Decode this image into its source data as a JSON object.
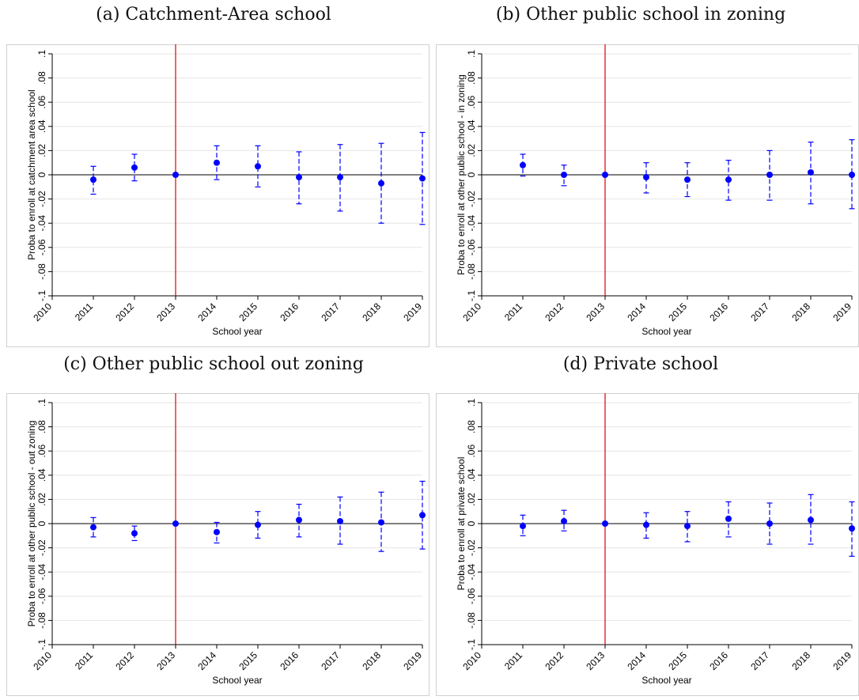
{
  "shared": {
    "xlabel": "School year",
    "x_ticks": [
      "2010",
      "2011",
      "2012",
      "2013",
      "2014",
      "2015",
      "2016",
      "2017",
      "2018",
      "2019"
    ],
    "y_ticks": [
      "-.1",
      "-.08",
      "-.06",
      "-.04",
      "-.02",
      "0",
      ".02",
      ".04",
      ".06",
      ".08",
      ".1"
    ],
    "colors": {
      "point": "#0000ff",
      "ci": "#0000ff",
      "event_line": "#e00000",
      "zero_line": "#000000",
      "grid": "#e6e6e6",
      "frame": "#d0d0d0"
    }
  },
  "chart_data": [
    {
      "type": "scatter",
      "caption": "(a) Catchment-Area school",
      "xlabel": "School year",
      "ylabel": "Proba to enroll at catchment area school",
      "xlim": [
        2010,
        2019
      ],
      "ylim": [
        -0.1,
        0.1
      ],
      "event_year": 2013,
      "points": [
        {
          "x": 2011,
          "y": -0.004,
          "lo": -0.016,
          "hi": 0.007
        },
        {
          "x": 2012,
          "y": 0.006,
          "lo": -0.005,
          "hi": 0.017
        },
        {
          "x": 2013,
          "y": 0.0,
          "lo": 0.0,
          "hi": 0.0
        },
        {
          "x": 2014,
          "y": 0.01,
          "lo": -0.004,
          "hi": 0.024
        },
        {
          "x": 2015,
          "y": 0.007,
          "lo": -0.01,
          "hi": 0.024
        },
        {
          "x": 2016,
          "y": -0.002,
          "lo": -0.024,
          "hi": 0.019
        },
        {
          "x": 2017,
          "y": -0.002,
          "lo": -0.03,
          "hi": 0.025
        },
        {
          "x": 2018,
          "y": -0.007,
          "lo": -0.04,
          "hi": 0.026
        },
        {
          "x": 2019,
          "y": -0.003,
          "lo": -0.041,
          "hi": 0.035
        }
      ]
    },
    {
      "type": "scatter",
      "caption": "(b) Other public school in zoning",
      "xlabel": "School year",
      "ylabel": "Proba to enroll at other public school - in zoning",
      "xlim": [
        2010,
        2019
      ],
      "ylim": [
        -0.1,
        0.1
      ],
      "event_year": 2013,
      "points": [
        {
          "x": 2011,
          "y": 0.008,
          "lo": -0.001,
          "hi": 0.017
        },
        {
          "x": 2012,
          "y": 0.0,
          "lo": -0.009,
          "hi": 0.008
        },
        {
          "x": 2013,
          "y": 0.0,
          "lo": 0.0,
          "hi": 0.0
        },
        {
          "x": 2014,
          "y": -0.002,
          "lo": -0.015,
          "hi": 0.01
        },
        {
          "x": 2015,
          "y": -0.004,
          "lo": -0.018,
          "hi": 0.01
        },
        {
          "x": 2016,
          "y": -0.004,
          "lo": -0.021,
          "hi": 0.012
        },
        {
          "x": 2017,
          "y": 0.0,
          "lo": -0.021,
          "hi": 0.02
        },
        {
          "x": 2018,
          "y": 0.002,
          "lo": -0.024,
          "hi": 0.027
        },
        {
          "x": 2019,
          "y": 0.0,
          "lo": -0.028,
          "hi": 0.029
        }
      ]
    },
    {
      "type": "scatter",
      "caption": "(c) Other public school out zoning",
      "xlabel": "School year",
      "ylabel": "Proba to enroll at other public school - out zoning",
      "xlim": [
        2010,
        2019
      ],
      "ylim": [
        -0.1,
        0.1
      ],
      "event_year": 2013,
      "points": [
        {
          "x": 2011,
          "y": -0.003,
          "lo": -0.011,
          "hi": 0.005
        },
        {
          "x": 2012,
          "y": -0.008,
          "lo": -0.014,
          "hi": -0.002
        },
        {
          "x": 2013,
          "y": 0.0,
          "lo": 0.0,
          "hi": 0.0
        },
        {
          "x": 2014,
          "y": -0.007,
          "lo": -0.016,
          "hi": 0.001
        },
        {
          "x": 2015,
          "y": -0.001,
          "lo": -0.012,
          "hi": 0.01
        },
        {
          "x": 2016,
          "y": 0.003,
          "lo": -0.011,
          "hi": 0.016
        },
        {
          "x": 2017,
          "y": 0.002,
          "lo": -0.017,
          "hi": 0.022
        },
        {
          "x": 2018,
          "y": 0.001,
          "lo": -0.023,
          "hi": 0.026
        },
        {
          "x": 2019,
          "y": 0.007,
          "lo": -0.021,
          "hi": 0.035
        }
      ]
    },
    {
      "type": "scatter",
      "caption": "(d) Private school",
      "xlabel": "School year",
      "ylabel": "Proba to enroll at private school",
      "xlim": [
        2010,
        2019
      ],
      "ylim": [
        -0.1,
        0.1
      ],
      "event_year": 2013,
      "points": [
        {
          "x": 2011,
          "y": -0.002,
          "lo": -0.01,
          "hi": 0.007
        },
        {
          "x": 2012,
          "y": 0.002,
          "lo": -0.006,
          "hi": 0.011
        },
        {
          "x": 2013,
          "y": 0.0,
          "lo": 0.0,
          "hi": 0.0
        },
        {
          "x": 2014,
          "y": -0.001,
          "lo": -0.012,
          "hi": 0.009
        },
        {
          "x": 2015,
          "y": -0.002,
          "lo": -0.015,
          "hi": 0.01
        },
        {
          "x": 2016,
          "y": 0.004,
          "lo": -0.011,
          "hi": 0.018
        },
        {
          "x": 2017,
          "y": 0.0,
          "lo": -0.017,
          "hi": 0.017
        },
        {
          "x": 2018,
          "y": 0.003,
          "lo": -0.017,
          "hi": 0.024
        },
        {
          "x": 2019,
          "y": -0.004,
          "lo": -0.027,
          "hi": 0.018
        }
      ]
    }
  ]
}
